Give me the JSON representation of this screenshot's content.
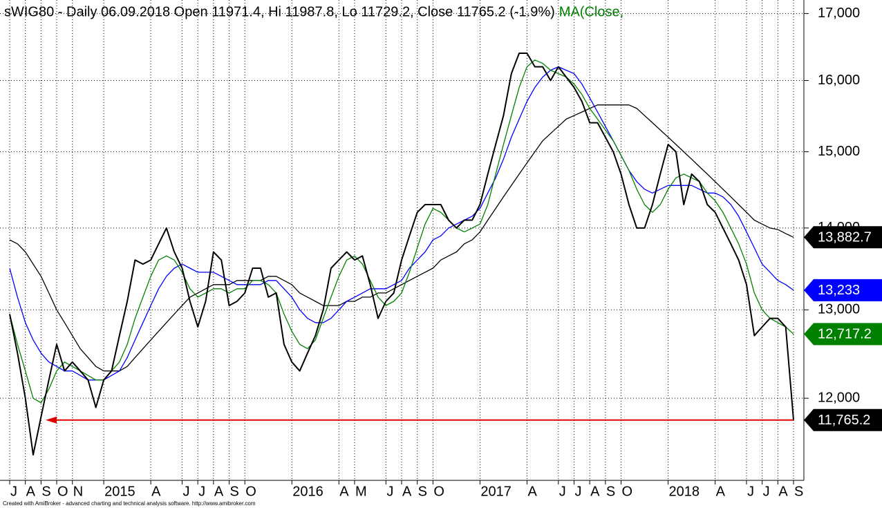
{
  "chart_data": {
    "type": "line",
    "title": "sWIG80 - Daily 06.09.2018 Open 11971.4, Hi 11987.8, Lo 11729.2, Close 11765.2 (-1.9%)",
    "footer": "Created with AmiBroker - advanced charting and technical analysis software. http://www.amibroker.com",
    "log_scale": true,
    "grid": true,
    "ylim": [
      11140,
      17210
    ],
    "yticks": [
      {
        "value": 12000,
        "label": "12,000"
      },
      {
        "value": 13000,
        "label": "13,000"
      },
      {
        "value": 14000,
        "label": "14,000"
      },
      {
        "value": 15000,
        "label": "15,000"
      },
      {
        "value": 16000,
        "label": "16,000"
      },
      {
        "value": 17000,
        "label": "17,000"
      }
    ],
    "categories": [
      "J",
      null,
      "A",
      null,
      "S",
      null,
      "O",
      null,
      "N",
      null,
      null,
      null,
      "2015",
      null,
      null,
      null,
      null,
      null,
      "A",
      null,
      null,
      null,
      "J",
      null,
      "J",
      null,
      "A",
      null,
      "S",
      null,
      "O",
      null,
      null,
      null,
      null,
      null,
      "2016",
      null,
      null,
      null,
      null,
      null,
      "A",
      null,
      "M",
      null,
      null,
      null,
      "J",
      null,
      "A",
      null,
      "S",
      null,
      "O",
      null,
      null,
      null,
      null,
      null,
      "2017",
      null,
      null,
      null,
      null,
      null,
      "A",
      null,
      null,
      null,
      "J",
      null,
      "J",
      null,
      "A",
      null,
      "S",
      null,
      "O",
      null,
      null,
      null,
      null,
      null,
      "2018",
      null,
      null,
      null,
      null,
      null,
      "A",
      null,
      null,
      null,
      "J",
      null,
      "J",
      null,
      "A",
      null,
      "S"
    ],
    "series": [
      {
        "color": "#000000",
        "values": [
          12950,
          12500,
          12000,
          11400,
          11800,
          12200,
          12600,
          12300,
          12400,
          12300,
          12200,
          11900,
          12200,
          12300,
          12700,
          13100,
          13600,
          13550,
          13600,
          13800,
          14000,
          13700,
          13500,
          13100,
          12800,
          13100,
          13700,
          13600,
          13050,
          13100,
          13200,
          13500,
          13500,
          13150,
          13200,
          12600,
          12400,
          12300,
          12500,
          12700,
          13000,
          13500,
          13600,
          13700,
          13600,
          13650,
          13300,
          12900,
          13100,
          13200,
          13600,
          13900,
          14200,
          14300,
          14300,
          14300,
          14100,
          14000,
          14100,
          14100,
          14300,
          14700,
          15100,
          15500,
          16100,
          16400,
          16400,
          16200,
          16200,
          16000,
          16200,
          16050,
          15900,
          15700,
          15400,
          15400,
          15200,
          15000,
          14700,
          14300,
          14000,
          14000,
          14300,
          14700,
          15100,
          15000,
          14300,
          14700,
          14600,
          14300,
          14200,
          14000,
          13800,
          13600,
          13300,
          12700,
          12800,
          12900,
          12900,
          12800,
          11765.2
        ],
        "value_labels": [
          null,
          null,
          null,
          null,
          null,
          null,
          null,
          null,
          null,
          null,
          null,
          null,
          null,
          null,
          null,
          null,
          null,
          null,
          null,
          null,
          null,
          null,
          null,
          null,
          null,
          null,
          null,
          null,
          null,
          null,
          null,
          null,
          null,
          null,
          null,
          null,
          null,
          null,
          null,
          null,
          null,
          null,
          null,
          null,
          null,
          null,
          null,
          null,
          null,
          null,
          null,
          null,
          null,
          null,
          null,
          null,
          null,
          null,
          null,
          null,
          null,
          null,
          null,
          null,
          null,
          null,
          null,
          null,
          null,
          null,
          null,
          null,
          null,
          null,
          null,
          null,
          null,
          null,
          null,
          null,
          null,
          null,
          null,
          null,
          null,
          null,
          null,
          null,
          null,
          null,
          null,
          null,
          null,
          null,
          null,
          null,
          null,
          null,
          null,
          null,
          "11,765.2"
        ]
      },
      {
        "name": "MA(Close,",
        "color": "#008000",
        "values": [
          12950,
          12600,
          12300,
          12000,
          11950,
          12100,
          12300,
          12400,
          12350,
          12300,
          12250,
          12200,
          12200,
          12300,
          12400,
          12600,
          12900,
          13150,
          13400,
          13600,
          13650,
          13600,
          13450,
          13250,
          13150,
          13200,
          13250,
          13250,
          13200,
          13250,
          13250,
          13350,
          13350,
          13300,
          13200,
          12950,
          12750,
          12600,
          12550,
          12650,
          12900,
          13150,
          13400,
          13600,
          13650,
          13550,
          13350,
          13150,
          13050,
          13100,
          13200,
          13450,
          13750,
          14050,
          14250,
          14200,
          14100,
          14000,
          13950,
          14000,
          14050,
          14300,
          14700,
          15100,
          15500,
          15900,
          16200,
          16300,
          16250,
          16150,
          16100,
          16050,
          15950,
          15800,
          15600,
          15450,
          15300,
          15150,
          14950,
          14750,
          14500,
          14300,
          14200,
          14300,
          14500,
          14650,
          14700,
          14650,
          14600,
          14450,
          14350,
          14200,
          14000,
          13800,
          13550,
          13200,
          13000,
          12900,
          12850,
          12800,
          12717.2
        ],
        "value_labels": [
          null,
          null,
          null,
          null,
          null,
          null,
          null,
          null,
          null,
          null,
          null,
          null,
          null,
          null,
          null,
          null,
          null,
          null,
          null,
          null,
          null,
          null,
          null,
          null,
          null,
          null,
          null,
          null,
          null,
          null,
          null,
          null,
          null,
          null,
          null,
          null,
          null,
          null,
          null,
          null,
          null,
          null,
          null,
          null,
          null,
          null,
          null,
          null,
          null,
          null,
          null,
          null,
          null,
          null,
          null,
          null,
          null,
          null,
          null,
          null,
          null,
          null,
          null,
          null,
          null,
          null,
          null,
          null,
          null,
          null,
          null,
          null,
          null,
          null,
          null,
          null,
          null,
          null,
          null,
          null,
          null,
          null,
          null,
          null,
          null,
          null,
          null,
          null,
          null,
          null,
          null,
          null,
          null,
          null,
          null,
          null,
          null,
          null,
          null,
          null,
          "12,717.2"
        ]
      },
      {
        "color": "#0000ff",
        "values": [
          13500,
          13150,
          12850,
          12650,
          12500,
          12400,
          12350,
          12300,
          12300,
          12250,
          12200,
          12200,
          12200,
          12250,
          12300,
          12450,
          12650,
          12850,
          13050,
          13250,
          13400,
          13500,
          13550,
          13500,
          13450,
          13450,
          13450,
          13400,
          13350,
          13300,
          13300,
          13300,
          13300,
          13350,
          13350,
          13250,
          13150,
          13000,
          12900,
          12850,
          12850,
          12900,
          13000,
          13100,
          13150,
          13200,
          13250,
          13250,
          13250,
          13300,
          13350,
          13500,
          13600,
          13700,
          13850,
          13900,
          14000,
          14050,
          14100,
          14150,
          14250,
          14450,
          14650,
          14900,
          15200,
          15450,
          15700,
          15900,
          16050,
          16150,
          16200,
          16150,
          16100,
          15950,
          15750,
          15550,
          15350,
          15150,
          14950,
          14750,
          14600,
          14500,
          14450,
          14500,
          14550,
          14550,
          14550,
          14550,
          14500,
          14450,
          14450,
          14400,
          14300,
          14150,
          13950,
          13750,
          13550,
          13450,
          13350,
          13300,
          13233
        ],
        "value_labels": [
          null,
          null,
          null,
          null,
          null,
          null,
          null,
          null,
          null,
          null,
          null,
          null,
          null,
          null,
          null,
          null,
          null,
          null,
          null,
          null,
          null,
          null,
          null,
          null,
          null,
          null,
          null,
          null,
          null,
          null,
          null,
          null,
          null,
          null,
          null,
          null,
          null,
          null,
          null,
          null,
          null,
          null,
          null,
          null,
          null,
          null,
          null,
          null,
          null,
          null,
          null,
          null,
          null,
          null,
          null,
          null,
          null,
          null,
          null,
          null,
          null,
          null,
          null,
          null,
          null,
          null,
          null,
          null,
          null,
          null,
          null,
          null,
          null,
          null,
          null,
          null,
          null,
          null,
          null,
          null,
          null,
          null,
          null,
          null,
          null,
          null,
          null,
          null,
          null,
          null,
          null,
          null,
          null,
          null,
          null,
          null,
          null,
          null,
          null,
          null,
          "13,233"
        ]
      },
      {
        "color": "#000000",
        "values": [
          13850,
          13800,
          13700,
          13550,
          13400,
          13200,
          13000,
          12850,
          12700,
          12550,
          12450,
          12350,
          12300,
          12300,
          12300,
          12350,
          12450,
          12550,
          12650,
          12750,
          12850,
          12950,
          13050,
          13150,
          13200,
          13250,
          13300,
          13300,
          13300,
          13350,
          13350,
          13350,
          13350,
          13400,
          13400,
          13350,
          13300,
          13200,
          13150,
          13100,
          13050,
          13050,
          13050,
          13100,
          13100,
          13150,
          13150,
          13200,
          13200,
          13250,
          13300,
          13350,
          13400,
          13450,
          13500,
          13600,
          13650,
          13700,
          13800,
          13850,
          13950,
          14100,
          14250,
          14400,
          14550,
          14700,
          14850,
          15000,
          15150,
          15250,
          15350,
          15450,
          15500,
          15550,
          15600,
          15650,
          15650,
          15650,
          15650,
          15650,
          15600,
          15500,
          15400,
          15300,
          15200,
          15100,
          15000,
          14900,
          14800,
          14700,
          14600,
          14500,
          14400,
          14300,
          14200,
          14100,
          14050,
          14000,
          13980,
          13930,
          13882.7
        ],
        "value_labels": [
          null,
          null,
          null,
          null,
          null,
          null,
          null,
          null,
          null,
          null,
          null,
          null,
          null,
          null,
          null,
          null,
          null,
          null,
          null,
          null,
          null,
          null,
          null,
          null,
          null,
          null,
          null,
          null,
          null,
          null,
          null,
          null,
          null,
          null,
          null,
          null,
          null,
          null,
          null,
          null,
          null,
          null,
          null,
          null,
          null,
          null,
          null,
          null,
          null,
          null,
          null,
          null,
          null,
          null,
          null,
          null,
          null,
          null,
          null,
          null,
          null,
          null,
          null,
          null,
          null,
          null,
          null,
          null,
          null,
          null,
          null,
          null,
          null,
          null,
          null,
          null,
          null,
          null,
          null,
          null,
          null,
          null,
          null,
          null,
          null,
          null,
          null,
          null,
          null,
          null,
          null,
          null,
          null,
          null,
          null,
          null,
          null,
          null,
          null,
          null,
          "13,882.7"
        ]
      }
    ],
    "reference_line": {
      "value": 11765.2,
      "color": "#e00000"
    }
  }
}
